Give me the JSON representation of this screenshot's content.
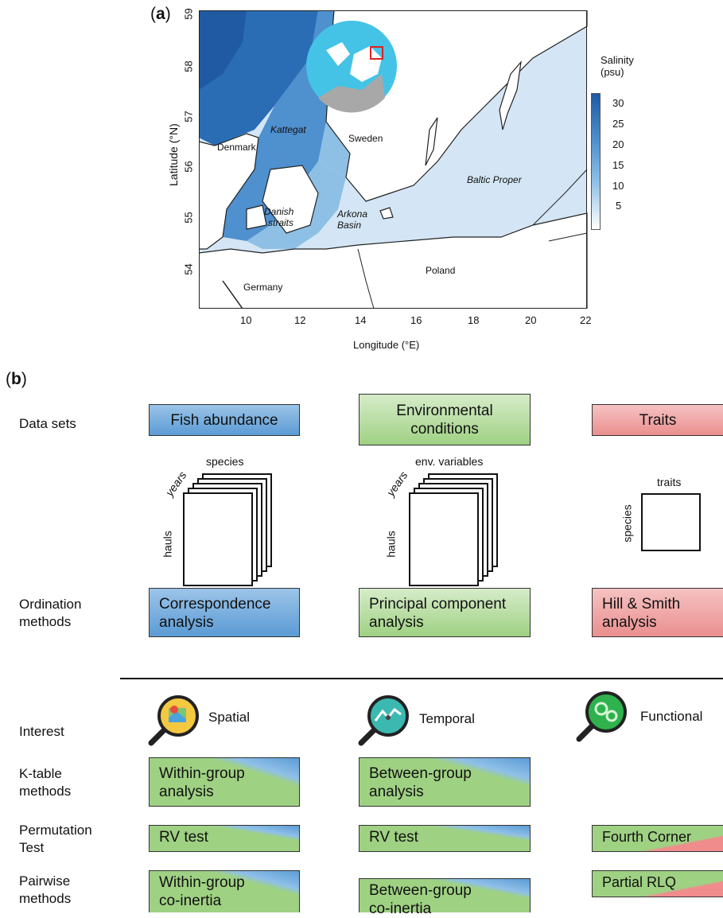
{
  "panel_a": {
    "letter": "a",
    "ylabel": "Latitude (°N)",
    "xlabel": "Longitude (°E)",
    "y_ticks": [
      "59",
      "58",
      "57",
      "56",
      "55",
      "54"
    ],
    "x_ticks": [
      "10",
      "12",
      "14",
      "16",
      "18",
      "20",
      "22"
    ],
    "places": {
      "kattegat": "Kattegat",
      "sweden": "Sweden",
      "denmark": "Denmark",
      "baltic_proper": "Baltic Proper",
      "danish_1": "Danish",
      "danish_2": "straits",
      "arkona_1": "Arkona",
      "arkona_2": "Basin",
      "poland": "Poland",
      "germany": "Germany"
    },
    "legend": {
      "title_1": "Salinity",
      "title_2": "(psu)",
      "ticks": [
        "30",
        "25",
        "20",
        "15",
        "10",
        "5"
      ]
    },
    "colors": {
      "deep": "#2a6db5",
      "mid": "#4f90cf",
      "light": "#8ec0e6",
      "pale": "#d4e6f5",
      "land": "#ffffff",
      "globe_sea": "#44c3e6"
    }
  },
  "panel_b": {
    "letter": "b",
    "rows": {
      "data_sets": "Data sets",
      "ordination_1": "Ordination",
      "ordination_2": "methods",
      "interest": "Interest",
      "ktable_1": "K-table",
      "ktable_2": "methods",
      "perm_1": "Permutation",
      "perm_2": "Test",
      "pair_1": "Pairwise",
      "pair_2": "methods"
    },
    "datasets": {
      "fish": "Fish abundance",
      "env_1": "Environmental",
      "env_2": "conditions",
      "traits": "Traits"
    },
    "matrix_labels": {
      "species": "species",
      "years1": "years",
      "hauls1": "hauls",
      "env_vars": "env. variables",
      "years2": "years",
      "hauls2": "hauls",
      "traits": "traits",
      "species2": "species"
    },
    "ordination": {
      "ca_1": "Correspondence",
      "ca_2": "analysis",
      "pca_1": "Principal component",
      "pca_2": "analysis",
      "hs_1": "Hill & Smith",
      "hs_2": "analysis"
    },
    "interest": {
      "spatial": "Spatial",
      "temporal": "Temporal",
      "functional": "Functional"
    },
    "ktable": {
      "within_1": "Within-group",
      "within_2": "analysis",
      "between_1": "Between-group",
      "between_2": "analysis"
    },
    "permutation": {
      "rv1": "RV test",
      "rv2": "RV test",
      "fourth": "Fourth Corner"
    },
    "pairwise": {
      "within_1": "Within-group",
      "within_2": "co-inertia",
      "between_1": "Between-group",
      "between_2": "co-inertia",
      "rlq": "Partial RLQ"
    }
  }
}
